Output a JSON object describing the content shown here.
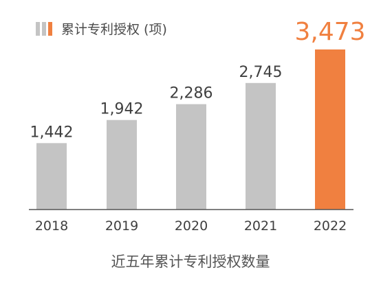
{
  "legend": {
    "label": "累计专利授权 (项)"
  },
  "footer": {
    "caption": "近五年累计专利授权数量"
  },
  "colors": {
    "bar": "#c4c4c4",
    "highlight": "#f08040",
    "axis": "#555555",
    "legend_gray": "#c4c4c4",
    "legend_orange": "#f08040"
  },
  "chart_data": {
    "type": "bar",
    "categories": [
      "2018",
      "2019",
      "2020",
      "2021",
      "2022"
    ],
    "values": [
      1442,
      1942,
      2286,
      2745,
      3473
    ],
    "value_labels": [
      "1,442",
      "1,942",
      "2,286",
      "2,745",
      "3,473"
    ],
    "highlight_index": 4,
    "title": "近五年累计专利授权数量",
    "xlabel": "",
    "ylabel": "",
    "ylim": [
      0,
      3473
    ],
    "grid": false,
    "legend_position": "top-left"
  }
}
